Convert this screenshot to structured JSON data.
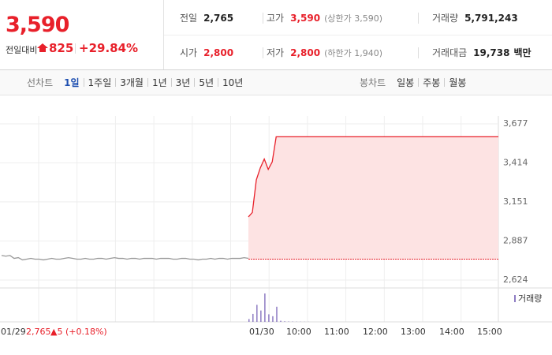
{
  "header": {
    "price": "3,590",
    "change_label": "전일대비",
    "change": "825",
    "change_rate": "+29.84%"
  },
  "summary": [
    [
      {
        "label": "전일",
        "value": "2,765"
      },
      {
        "label": "고가",
        "value": "3,590",
        "note": "(상한가 3,590)"
      },
      {
        "label": "거래량",
        "value": "5,791,243"
      }
    ],
    [
      {
        "label": "시가",
        "value": "2,800"
      },
      {
        "label": "저가",
        "value": "2,800",
        "note": "(하한가 1,940)"
      },
      {
        "label": "거래대금",
        "value": "19,738",
        "note": "백만"
      }
    ]
  ],
  "tabs": {
    "line_label": "선차트",
    "line_periods": [
      "1일",
      "1주일",
      "3개월",
      "1년",
      "3년",
      "5년",
      "10년"
    ],
    "candle_label": "봉차트",
    "candle_periods": [
      "일봉",
      "주봉",
      "월봉"
    ]
  },
  "chart_data": {
    "type": "line",
    "ylim": [
      2624,
      3677
    ],
    "yticks": [
      {
        "value": 3677,
        "label": "3,677"
      },
      {
        "value": 3414,
        "label": "3,414"
      },
      {
        "value": 3151,
        "label": "3,151"
      },
      {
        "value": 2887,
        "label": "2,887"
      },
      {
        "value": 2624,
        "label": "2,624"
      }
    ],
    "baseline": 2765,
    "series": [
      {
        "color": "#999999",
        "values": [
          2790,
          2785,
          2790,
          2770,
          2775,
          2760,
          2765,
          2770,
          2765,
          2765,
          2760,
          2765,
          2770,
          2765,
          2765,
          2770,
          2775,
          2770,
          2765,
          2765,
          2770,
          2765,
          2765,
          2770,
          2770,
          2765,
          2770,
          2775,
          2770,
          2770,
          2765,
          2770,
          2770,
          2765,
          2770,
          2770,
          2770,
          2765,
          2770,
          2770,
          2770,
          2765,
          2765,
          2770,
          2770,
          2765,
          2765,
          2760,
          2765,
          2765,
          2770,
          2765,
          2770,
          2770,
          2765,
          2770,
          2770,
          2770,
          2775,
          2770
        ]
      },
      {
        "color": "#e8202a",
        "values": [
          3050,
          3080,
          3300,
          3380,
          3440,
          3370,
          3420,
          3590,
          3590,
          3590,
          3590,
          3590,
          3590,
          3590,
          3590,
          3590,
          3590,
          3590,
          3590,
          3590,
          3590,
          3590,
          3590,
          3590,
          3590,
          3590,
          3590,
          3590,
          3590,
          3590,
          3590,
          3590,
          3590,
          3590,
          3590,
          3590,
          3590,
          3590,
          3590,
          3590,
          3590,
          3590,
          3590,
          3590,
          3590,
          3590,
          3590,
          3590,
          3590,
          3590,
          3590,
          3590,
          3590,
          3590,
          3590,
          3590,
          3590,
          3590,
          3590,
          3590,
          3590,
          3590,
          3590,
          3590
        ]
      }
    ],
    "volume": {
      "name": "거래량",
      "color": "#8e7cc3",
      "values": [
        150000,
        420000,
        900000,
        600000,
        1500000,
        400000,
        300000,
        800000,
        60000,
        30000,
        20000,
        15000,
        10000,
        8000,
        6000,
        5000
      ]
    },
    "x_labels": [
      "01/29",
      "01/30",
      "10:00",
      "11:00",
      "12:00",
      "13:00",
      "14:00",
      "15:00"
    ],
    "info": {
      "date": "01/29",
      "price": "2,765",
      "change": "▲5 (+0.18%)"
    }
  }
}
